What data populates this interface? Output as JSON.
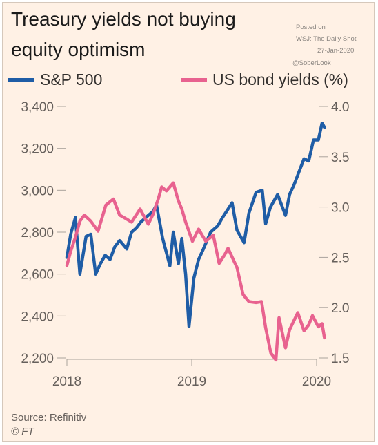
{
  "title_line1": "Treasury yields not buying",
  "title_line2": "equity optimism",
  "posted_note": [
    "Posted on",
    "WSJ: The Daily Shot",
    "27-Jan-2020"
  ],
  "handle": "@SoberLook",
  "source": "Source: Refinitiv",
  "publisher": "© FT",
  "colors": {
    "sp500": "#1f5da6",
    "yields": "#e8628f",
    "axis": "#aaa39c",
    "tick_text": "#66605c",
    "background": "#fff1e5"
  },
  "chart_data": {
    "type": "line",
    "x_ticks": [
      "2018",
      "2019",
      "2020"
    ],
    "x_range": [
      "2018-01-01",
      "2020-01-01"
    ],
    "left_axis": {
      "range": [
        2200,
        3400
      ],
      "ticks": [
        "3,400",
        "3,200",
        "3,000",
        "2,800",
        "2,600",
        "2,400",
        "2,200"
      ],
      "tick_values": [
        3400,
        3200,
        3000,
        2800,
        2600,
        2400,
        2200
      ]
    },
    "right_axis": {
      "range": [
        1.5,
        4.0
      ],
      "ticks": [
        "4.0",
        "3.5",
        "3.0",
        "2.5",
        "2.0",
        "1.5"
      ],
      "tick_values": [
        4.0,
        3.5,
        3.0,
        2.5,
        2.0,
        1.5
      ]
    },
    "grid": false,
    "legend": "top",
    "series": [
      {
        "name": "S&P 500",
        "axis": "left",
        "x": [
          "2018-01-01",
          "2018-01-12",
          "2018-01-26",
          "2018-02-08",
          "2018-02-26",
          "2018-03-12",
          "2018-03-26",
          "2018-04-09",
          "2018-04-23",
          "2018-05-07",
          "2018-05-21",
          "2018-06-04",
          "2018-06-25",
          "2018-07-09",
          "2018-07-23",
          "2018-08-06",
          "2018-08-27",
          "2018-09-10",
          "2018-09-20",
          "2018-10-08",
          "2018-10-29",
          "2018-11-08",
          "2018-11-23",
          "2018-12-03",
          "2018-12-14",
          "2018-12-24",
          "2019-01-07",
          "2019-01-21",
          "2019-02-04",
          "2019-02-25",
          "2019-03-18",
          "2019-04-01",
          "2019-04-29",
          "2019-05-13",
          "2019-06-03",
          "2019-06-17",
          "2019-07-08",
          "2019-07-26",
          "2019-08-05",
          "2019-08-19",
          "2019-09-09",
          "2019-10-02",
          "2019-10-14",
          "2019-10-28",
          "2019-11-11",
          "2019-11-25",
          "2019-12-09",
          "2019-12-23",
          "2020-01-06",
          "2020-01-17",
          "2020-01-24"
        ],
        "values": [
          2680,
          2790,
          2870,
          2600,
          2780,
          2790,
          2600,
          2650,
          2690,
          2670,
          2730,
          2760,
          2720,
          2800,
          2820,
          2850,
          2880,
          2900,
          2930,
          2770,
          2640,
          2800,
          2650,
          2770,
          2600,
          2350,
          2580,
          2670,
          2720,
          2800,
          2830,
          2870,
          2940,
          2810,
          2750,
          2890,
          2990,
          3000,
          2840,
          2920,
          2980,
          2880,
          2980,
          3030,
          3090,
          3150,
          3140,
          3240,
          3240,
          3320,
          3300
        ]
      },
      {
        "name": "US bond yields (%)",
        "axis": "right",
        "x": [
          "2018-01-01",
          "2018-01-12",
          "2018-01-26",
          "2018-02-08",
          "2018-02-21",
          "2018-03-12",
          "2018-04-02",
          "2018-04-25",
          "2018-05-17",
          "2018-06-04",
          "2018-06-25",
          "2018-07-09",
          "2018-08-03",
          "2018-08-27",
          "2018-09-10",
          "2018-09-25",
          "2018-10-05",
          "2018-10-19",
          "2018-11-08",
          "2018-11-23",
          "2018-12-03",
          "2018-12-14",
          "2019-01-03",
          "2019-01-21",
          "2019-02-11",
          "2019-03-05",
          "2019-03-22",
          "2019-04-08",
          "2019-04-17",
          "2019-05-13",
          "2019-05-31",
          "2019-06-17",
          "2019-07-08",
          "2019-07-24",
          "2019-08-05",
          "2019-08-20",
          "2019-09-04",
          "2019-09-13",
          "2019-10-02",
          "2019-10-14",
          "2019-11-07",
          "2019-11-25",
          "2019-12-09",
          "2019-12-20",
          "2020-01-06",
          "2020-01-17",
          "2020-01-24"
        ],
        "values": [
          2.42,
          2.56,
          2.7,
          2.86,
          2.92,
          2.86,
          2.76,
          3.02,
          3.08,
          2.92,
          2.88,
          2.85,
          2.98,
          2.83,
          2.93,
          3.08,
          3.2,
          3.16,
          3.24,
          3.06,
          2.98,
          2.85,
          2.66,
          2.78,
          2.66,
          2.72,
          2.44,
          2.53,
          2.59,
          2.4,
          2.13,
          2.06,
          2.05,
          2.06,
          1.8,
          1.55,
          1.48,
          1.9,
          1.6,
          1.78,
          1.95,
          1.77,
          1.83,
          1.92,
          1.81,
          1.84,
          1.7
        ]
      }
    ]
  }
}
